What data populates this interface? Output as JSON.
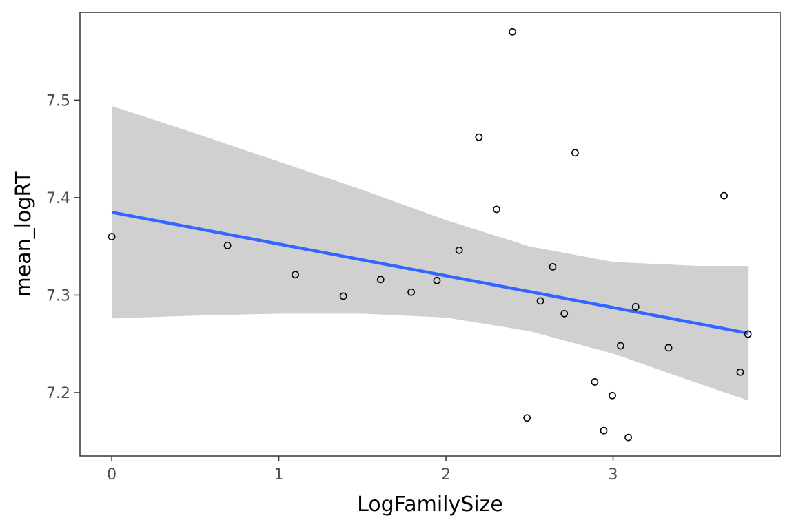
{
  "chart_data": {
    "type": "scatter",
    "title": "",
    "xlabel": "LogFamilySize",
    "ylabel": "mean_logRT",
    "xlim": [
      -0.19,
      4.0
    ],
    "ylim": [
      7.135,
      7.59
    ],
    "x_ticks": [
      {
        "value": 0,
        "label": "0"
      },
      {
        "value": 1,
        "label": "1"
      },
      {
        "value": 2,
        "label": "2"
      },
      {
        "value": 3,
        "label": "3"
      }
    ],
    "y_ticks": [
      {
        "value": 7.2,
        "label": "7.2"
      },
      {
        "value": 7.3,
        "label": "7.3"
      },
      {
        "value": 7.4,
        "label": "7.4"
      },
      {
        "value": 7.5,
        "label": "7.5"
      }
    ],
    "grid": false,
    "points": [
      {
        "x": 0.0,
        "y": 7.36
      },
      {
        "x": 0.693,
        "y": 7.351
      },
      {
        "x": 1.099,
        "y": 7.321
      },
      {
        "x": 1.386,
        "y": 7.299
      },
      {
        "x": 1.609,
        "y": 7.316
      },
      {
        "x": 1.792,
        "y": 7.303
      },
      {
        "x": 1.946,
        "y": 7.315
      },
      {
        "x": 2.079,
        "y": 7.346
      },
      {
        "x": 2.197,
        "y": 7.462
      },
      {
        "x": 2.303,
        "y": 7.388
      },
      {
        "x": 2.398,
        "y": 7.57
      },
      {
        "x": 2.485,
        "y": 7.174
      },
      {
        "x": 2.565,
        "y": 7.294
      },
      {
        "x": 2.639,
        "y": 7.329
      },
      {
        "x": 2.708,
        "y": 7.281
      },
      {
        "x": 2.773,
        "y": 7.446
      },
      {
        "x": 2.89,
        "y": 7.211
      },
      {
        "x": 2.944,
        "y": 7.161
      },
      {
        "x": 2.996,
        "y": 7.197
      },
      {
        "x": 3.045,
        "y": 7.248
      },
      {
        "x": 3.091,
        "y": 7.154
      },
      {
        "x": 3.135,
        "y": 7.288
      },
      {
        "x": 3.332,
        "y": 7.246
      },
      {
        "x": 3.664,
        "y": 7.402
      },
      {
        "x": 3.761,
        "y": 7.221
      },
      {
        "x": 3.807,
        "y": 7.26
      }
    ],
    "fit_line": {
      "color": "#3366FF",
      "x": [
        0.0,
        3.807
      ],
      "y": [
        7.385,
        7.261
      ]
    },
    "confidence_band": {
      "color": "#d0d0d0",
      "x": [
        0.0,
        0.5,
        1.0,
        1.5,
        2.0,
        2.5,
        3.0,
        3.5,
        3.807
      ],
      "upper": [
        7.494,
        7.466,
        7.437,
        7.408,
        7.377,
        7.35,
        7.334,
        7.33,
        7.33
      ],
      "lower": [
        7.276,
        7.279,
        7.281,
        7.281,
        7.277,
        7.263,
        7.24,
        7.21,
        7.192
      ]
    }
  }
}
